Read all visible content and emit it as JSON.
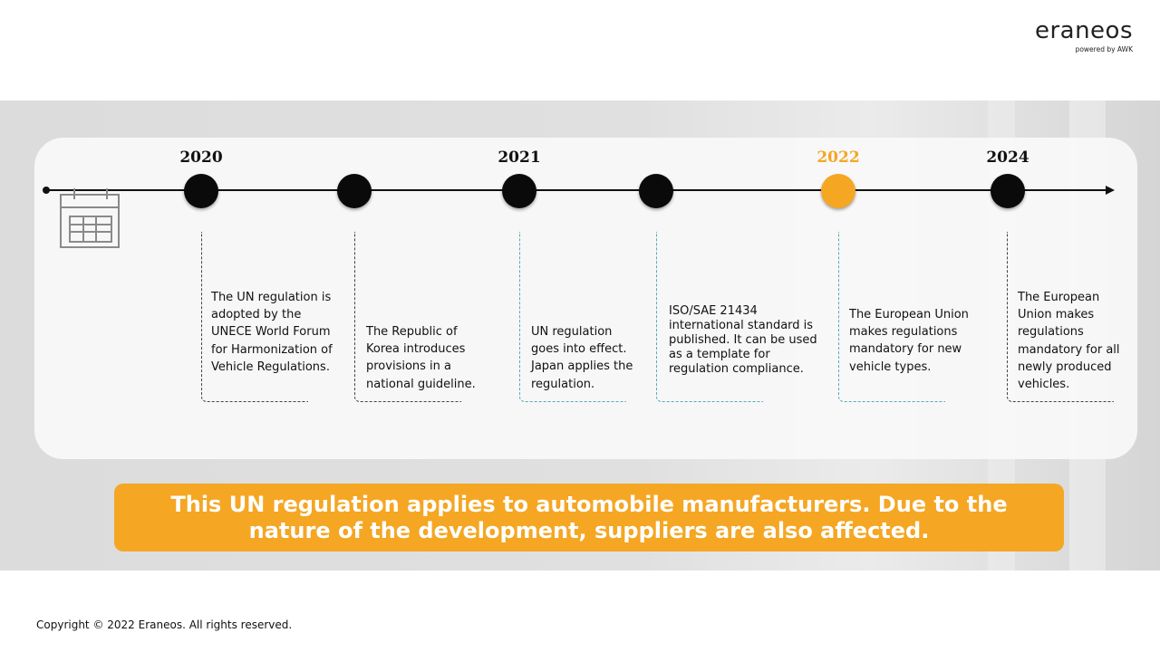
{
  "logo": {
    "wordmark": "eraneos",
    "tagline": "powered by AWK"
  },
  "timeline": {
    "icon": "calendar-icon",
    "accent_color": "#f5a623",
    "years": [
      "2020",
      "2021",
      "2022",
      "2024"
    ],
    "events": [
      "The UN regulation is adopted by the UNECE World Forum for Harmonization of Vehicle Regulations.",
      "The Republic of Korea introduces provisions in a national guideline.",
      "UN regulation goes into effect. Japan applies the regulation.",
      "ISO/SAE 21434 international standard is published. It can be used as a template for regulation compliance.",
      "The European Union makes regulations mandatory for new vehicle types.",
      "The European Union makes regulations mandatory for all newly produced vehicles."
    ]
  },
  "callout": {
    "text": "This UN regulation applies to automobile manufacturers. Due to the nature of the development, suppliers are also affected."
  },
  "footer": {
    "copyright": "Copyright © 2022 Eraneos. All rights reserved."
  }
}
